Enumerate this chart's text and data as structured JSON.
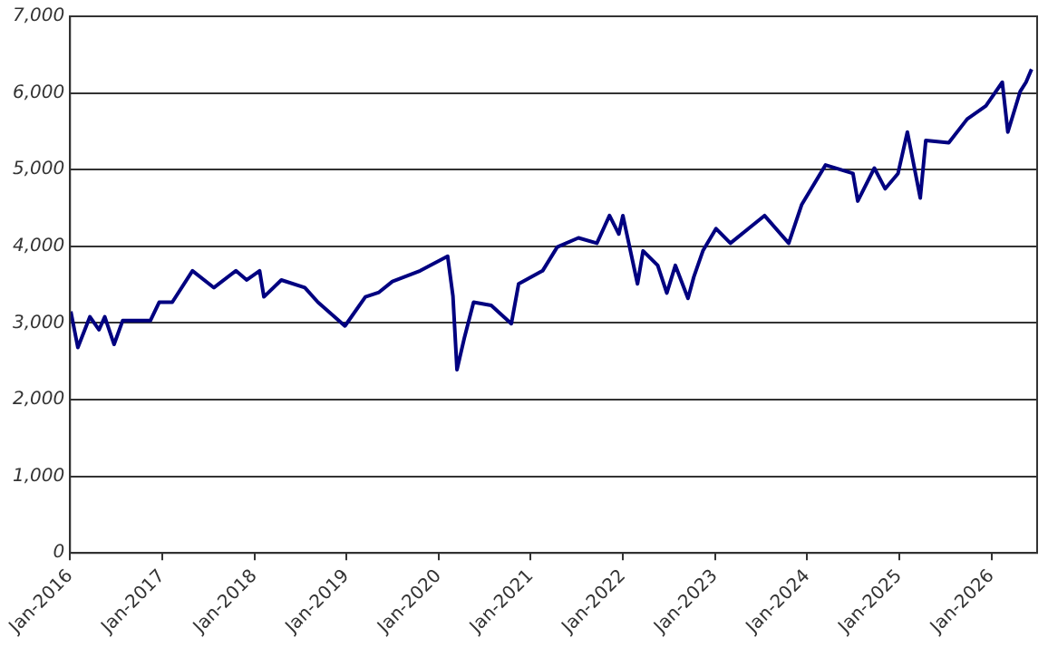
{
  "chart_data": {
    "type": "line",
    "x": [
      "2016-01-04",
      "2016-02-01",
      "2016-03-20",
      "2016-04-25",
      "2016-05-18",
      "2016-06-24",
      "2016-07-28",
      "2016-11-15",
      "2016-12-20",
      "2017-02-10",
      "2017-05-01",
      "2017-07-25",
      "2017-10-20",
      "2017-12-02",
      "2018-01-22",
      "2018-02-08",
      "2018-04-18",
      "2018-07-20",
      "2018-09-10",
      "2018-12-26",
      "2019-03-17",
      "2019-05-10",
      "2019-07-02",
      "2019-10-20",
      "2020-02-06",
      "2020-02-27",
      "2020-03-14",
      "2020-04-12",
      "2020-05-19",
      "2020-07-28",
      "2020-10-16",
      "2020-11-14",
      "2021-02-17",
      "2021-04-16",
      "2021-07-09",
      "2021-09-20",
      "2021-11-09",
      "2021-12-16",
      "2022-01-01",
      "2022-02-28",
      "2022-03-22",
      "2022-05-19",
      "2022-06-24",
      "2022-07-28",
      "2022-09-16",
      "2022-10-09",
      "2022-11-14",
      "2023-01-05",
      "2023-03-03",
      "2023-07-16",
      "2023-10-20",
      "2023-12-10",
      "2024-03-14",
      "2024-07-01",
      "2024-07-20",
      "2024-09-24",
      "2024-11-06",
      "2024-12-27",
      "2025-02-02",
      "2025-03-25",
      "2025-04-16",
      "2025-07-16",
      "2025-09-27",
      "2025-12-10",
      "2026-02-13",
      "2026-03-07",
      "2026-04-25",
      "2026-05-18",
      "2026-06-09"
    ],
    "series": [
      {
        "color": "#000080",
        "values": [
          3150,
          2680,
          3080,
          2910,
          3080,
          2720,
          3030,
          3030,
          3270,
          3270,
          3680,
          3460,
          3680,
          3560,
          3680,
          3340,
          3560,
          3460,
          3270,
          2960,
          3340,
          3400,
          3540,
          3680,
          3870,
          3350,
          2390,
          2800,
          3270,
          3230,
          2990,
          3510,
          3680,
          3990,
          4110,
          4040,
          4400,
          4160,
          4400,
          3510,
          3940,
          3750,
          3390,
          3750,
          3320,
          3600,
          3940,
          4230,
          4040,
          4400,
          4040,
          4540,
          5060,
          4950,
          4590,
          5020,
          4750,
          4950,
          5490,
          4630,
          5380,
          5350,
          5660,
          5830,
          6140,
          5490,
          6020,
          6140,
          6310
        ]
      }
    ],
    "xlim": [
      "2016-01-01",
      "2026-07-01"
    ],
    "xticks": [
      {
        "value": "2016-01",
        "label": "Jan-2016"
      },
      {
        "value": "2017-01",
        "label": "Jan-2017"
      },
      {
        "value": "2018-01",
        "label": "Jan-2018"
      },
      {
        "value": "2019-01",
        "label": "Jan-2019"
      },
      {
        "value": "2020-01",
        "label": "Jan-2020"
      },
      {
        "value": "2021-01",
        "label": "Jan-2021"
      },
      {
        "value": "2022-01",
        "label": "Jan-2022"
      },
      {
        "value": "2023-01",
        "label": "Jan-2023"
      },
      {
        "value": "2024-01",
        "label": "Jan-2024"
      },
      {
        "value": "2025-01",
        "label": "Jan-2025"
      },
      {
        "value": "2026-01",
        "label": "Jan-2026"
      }
    ],
    "ylim": [
      0,
      7000
    ],
    "yticks": [
      0,
      {
        "value": 1000,
        "label": "1,000"
      },
      {
        "value": 2000,
        "label": "2,000"
      },
      {
        "value": 3000,
        "label": "3,000"
      },
      {
        "value": 4000,
        "label": "4,000"
      },
      {
        "value": 5000,
        "label": "5,000"
      },
      {
        "value": 6000,
        "label": "6,000"
      },
      {
        "value": 7000,
        "label": "7,000"
      }
    ],
    "grid": "y",
    "legend": false,
    "marker": "none",
    "line_style": "solid"
  }
}
